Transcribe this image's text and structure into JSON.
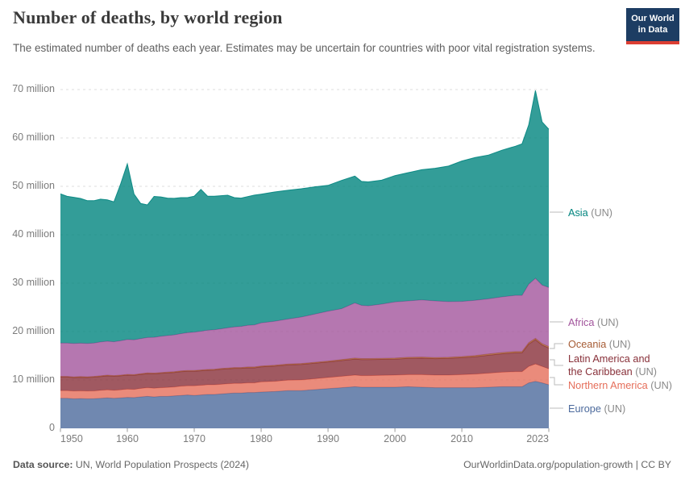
{
  "header": {
    "title": "Number of deaths, by world region",
    "subtitle": "The estimated number of deaths each year. Estimates may be uncertain for countries with poor vital registration systems.",
    "logo": {
      "line1": "Our World",
      "line2": "in Data",
      "bg_color": "#1d3d63",
      "accent_color": "#dc3e33"
    }
  },
  "footer": {
    "source_label": "Data source:",
    "source_value": "UN, World Population Prospects (2024)",
    "credit": "OurWorldinData.org/population-growth | CC BY"
  },
  "chart_data": {
    "type": "area",
    "stacked": true,
    "title": "Number of deaths, by world region",
    "xlabel": "",
    "ylabel": "",
    "values_unit": "millions of deaths per year",
    "xlim": [
      1950,
      2023
    ],
    "ylim_millions": [
      0,
      70
    ],
    "grid": "horizontal-dashed",
    "legend_position": "right",
    "x_ticks": [
      1950,
      1960,
      1970,
      1980,
      1990,
      2000,
      2010,
      2023
    ],
    "y_ticks": [
      {
        "value": 0,
        "label": "0"
      },
      {
        "value": 10,
        "label": "10 million"
      },
      {
        "value": 20,
        "label": "20 million"
      },
      {
        "value": 30,
        "label": "30 million"
      },
      {
        "value": 40,
        "label": "40 million"
      },
      {
        "value": 50,
        "label": "50 million"
      },
      {
        "value": 60,
        "label": "60 million"
      },
      {
        "value": 70,
        "label": "70 million"
      }
    ],
    "years": [
      1950,
      1951,
      1952,
      1953,
      1954,
      1955,
      1956,
      1957,
      1958,
      1959,
      1960,
      1961,
      1962,
      1963,
      1964,
      1965,
      1966,
      1967,
      1968,
      1969,
      1970,
      1971,
      1972,
      1973,
      1974,
      1975,
      1976,
      1977,
      1978,
      1979,
      1980,
      1982,
      1984,
      1986,
      1988,
      1990,
      1992,
      1994,
      1995,
      1996,
      1998,
      2000,
      2002,
      2004,
      2006,
      2008,
      2010,
      2012,
      2014,
      2016,
      2018,
      2019,
      2020,
      2021,
      2022,
      2023
    ],
    "series": [
      {
        "name": "Asia",
        "suffix": "(UN)",
        "color": "#00847E",
        "values": [
          30.8,
          30.3,
          30.2,
          29.9,
          29.5,
          29.4,
          29.5,
          29.2,
          28.9,
          32.4,
          36.3,
          30.1,
          27.9,
          27.4,
          29.1,
          28.8,
          28.4,
          28.2,
          28.1,
          27.9,
          28.1,
          29.3,
          27.7,
          27.6,
          27.5,
          27.4,
          26.7,
          26.5,
          26.6,
          26.8,
          26.6,
          26.7,
          26.6,
          26.5,
          26.3,
          26.0,
          26.5,
          26.2,
          25.6,
          25.6,
          25.6,
          26.1,
          26.5,
          26.9,
          27.4,
          28.0,
          29.0,
          29.5,
          29.7,
          30.3,
          30.8,
          31.3,
          32.9,
          38.8,
          33.7,
          32.7
        ]
      },
      {
        "name": "Africa",
        "suffix": "(UN)",
        "color": "#A2559C",
        "values": [
          6.9,
          6.9,
          6.9,
          6.9,
          6.9,
          6.9,
          7.0,
          7.0,
          7.0,
          7.1,
          7.2,
          7.2,
          7.25,
          7.3,
          7.4,
          7.5,
          7.55,
          7.6,
          7.7,
          7.8,
          7.9,
          8.0,
          8.1,
          8.15,
          8.2,
          8.3,
          8.4,
          8.5,
          8.6,
          8.7,
          8.9,
          9.1,
          9.3,
          9.6,
          9.95,
          10.3,
          10.5,
          11.4,
          11.0,
          10.9,
          11.2,
          11.6,
          11.65,
          11.8,
          11.7,
          11.5,
          11.4,
          11.4,
          11.4,
          11.5,
          11.6,
          11.6,
          12.1,
          12.4,
          12.1,
          12.2
        ]
      },
      {
        "name": "Oceania",
        "suffix": "(UN)",
        "color": "#A65C35",
        "values": [
          0.14,
          0.14,
          0.14,
          0.15,
          0.15,
          0.15,
          0.15,
          0.15,
          0.15,
          0.15,
          0.15,
          0.15,
          0.15,
          0.16,
          0.16,
          0.16,
          0.16,
          0.16,
          0.17,
          0.17,
          0.17,
          0.17,
          0.17,
          0.17,
          0.17,
          0.17,
          0.17,
          0.17,
          0.18,
          0.18,
          0.18,
          0.19,
          0.19,
          0.2,
          0.2,
          0.2,
          0.21,
          0.21,
          0.21,
          0.22,
          0.22,
          0.22,
          0.23,
          0.23,
          0.24,
          0.24,
          0.24,
          0.25,
          0.26,
          0.27,
          0.28,
          0.28,
          0.3,
          0.3,
          0.3,
          0.3
        ]
      },
      {
        "name": "Latin America and the Caribbean",
        "suffix": "(UN)",
        "color": "#883039",
        "values": [
          2.8,
          2.8,
          2.8,
          2.8,
          2.8,
          2.84,
          2.85,
          2.9,
          2.9,
          2.9,
          2.9,
          2.9,
          2.9,
          2.9,
          2.95,
          2.96,
          3.0,
          3.0,
          3.0,
          3.0,
          3.0,
          3.0,
          3.0,
          3.05,
          3.1,
          3.1,
          3.1,
          3.1,
          3.1,
          3.1,
          3.1,
          3.15,
          3.15,
          3.2,
          3.2,
          3.2,
          3.25,
          3.3,
          3.3,
          3.3,
          3.3,
          3.3,
          3.35,
          3.4,
          3.4,
          3.45,
          3.5,
          3.6,
          3.7,
          3.8,
          3.9,
          3.9,
          4.6,
          5.0,
          4.4,
          4.3
        ]
      },
      {
        "name": "Northern America",
        "suffix": "(UN)",
        "color": "#E56E5A",
        "values": [
          1.6,
          1.6,
          1.6,
          1.6,
          1.6,
          1.6,
          1.65,
          1.65,
          1.65,
          1.65,
          1.7,
          1.7,
          1.75,
          1.8,
          1.8,
          1.8,
          1.85,
          1.85,
          1.9,
          1.9,
          2.0,
          2.0,
          2.0,
          2.0,
          2.0,
          2.0,
          2.0,
          2.0,
          2.0,
          2.0,
          2.1,
          2.1,
          2.15,
          2.2,
          2.25,
          2.3,
          2.35,
          2.4,
          2.4,
          2.4,
          2.45,
          2.5,
          2.5,
          2.6,
          2.6,
          2.6,
          2.7,
          2.8,
          2.9,
          3.0,
          3.1,
          3.1,
          3.4,
          3.6,
          3.4,
          3.3
        ]
      },
      {
        "name": "Europe",
        "suffix": "(UN)",
        "color": "#4C6A9C",
        "values": [
          6.2,
          6.2,
          6.1,
          6.15,
          6.1,
          6.14,
          6.2,
          6.3,
          6.2,
          6.3,
          6.4,
          6.35,
          6.5,
          6.6,
          6.5,
          6.6,
          6.6,
          6.7,
          6.8,
          6.9,
          6.8,
          6.9,
          7.0,
          7.0,
          7.1,
          7.2,
          7.3,
          7.3,
          7.4,
          7.4,
          7.5,
          7.6,
          7.8,
          7.8,
          8.0,
          8.2,
          8.4,
          8.6,
          8.5,
          8.5,
          8.5,
          8.5,
          8.6,
          8.5,
          8.4,
          8.4,
          8.4,
          8.4,
          8.5,
          8.6,
          8.6,
          8.6,
          9.4,
          9.7,
          9.4,
          9.0
        ]
      }
    ]
  }
}
